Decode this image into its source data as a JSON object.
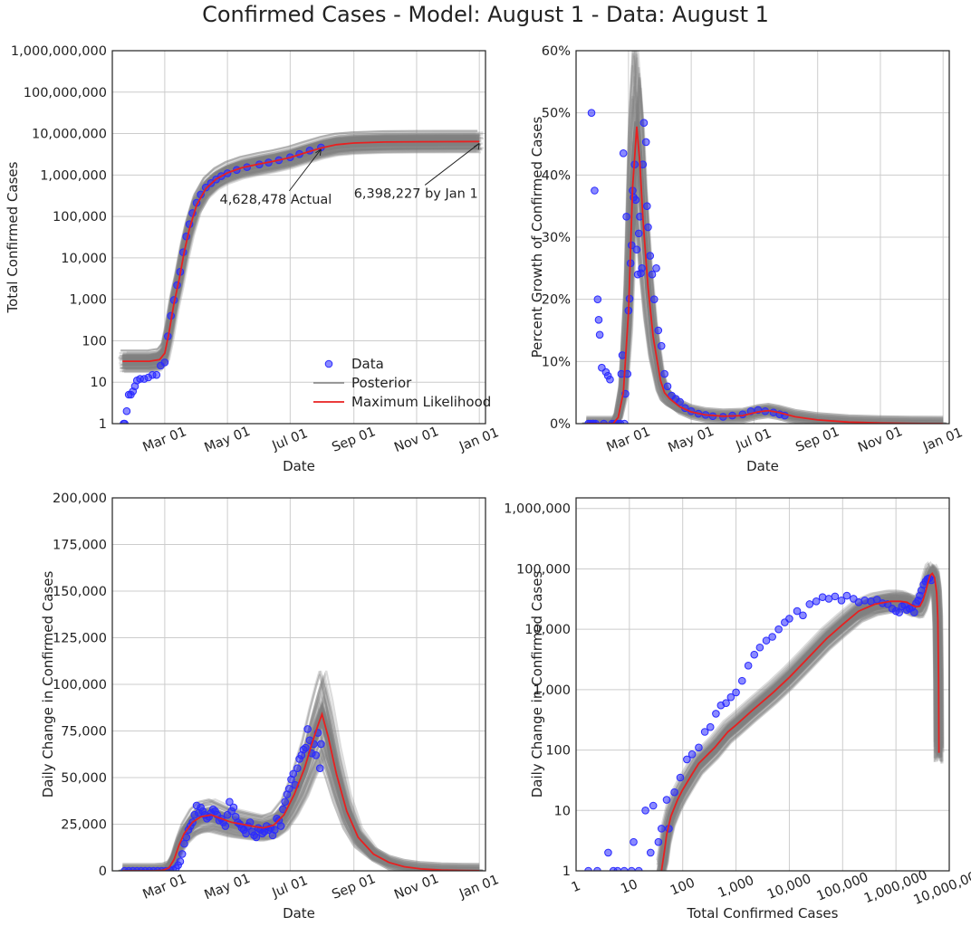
{
  "figure": {
    "title": "Confirmed Cases - Model: August 1 - Data: August 1"
  },
  "colors": {
    "data": "#2a2aff",
    "posterior": "#808080",
    "ml": "#e82020",
    "grid": "#cccccc"
  },
  "chart_data": [
    {
      "id": "total",
      "type": "line",
      "title": "",
      "xlabel": "Date",
      "ylabel": "Total Confirmed Cases",
      "xscale": "date",
      "yscale": "log",
      "xlim": [
        "2020-01-10",
        "2021-01-07"
      ],
      "ylim": [
        1,
        1000000000
      ],
      "xticks": [
        "2020-03-01",
        "2020-05-01",
        "2020-07-01",
        "2020-09-01",
        "2020-11-01",
        "2021-01-01"
      ],
      "xtick_labels": [
        "Mar 01",
        "May 01",
        "Jul 01",
        "Sep 01",
        "Nov 01",
        "Jan 01"
      ],
      "yticks": [
        1,
        10,
        100,
        1000,
        10000,
        100000,
        1000000,
        10000000,
        100000000,
        1000000000
      ],
      "ytick_labels": [
        "1",
        "10",
        "100",
        "1,000",
        "10,000",
        "100,000",
        "1,000,000",
        "10,000,000",
        "100,000,000",
        "1,000,000,000"
      ],
      "grid": true,
      "legend": {
        "position": "bottom-right",
        "entries": [
          "Data",
          "Posterior",
          "Maximum Likelihood"
        ]
      },
      "annotations": [
        {
          "text": "4,628,478 Actual",
          "x": "2020-07-31",
          "y": 4628478
        },
        {
          "text": "6,398,227 by Jan 1",
          "x": "2021-01-01",
          "y": 6398227
        }
      ],
      "data_points": {
        "x": [
          "2020-01-21",
          "2020-01-22",
          "2020-01-24",
          "2020-01-26",
          "2020-01-28",
          "2020-01-30",
          "2020-02-01",
          "2020-02-03",
          "2020-02-06",
          "2020-02-10",
          "2020-02-14",
          "2020-02-18",
          "2020-02-22",
          "2020-02-26",
          "2020-03-01",
          "2020-03-04",
          "2020-03-07",
          "2020-03-10",
          "2020-03-13",
          "2020-03-16",
          "2020-03-19",
          "2020-03-22",
          "2020-03-25",
          "2020-03-28",
          "2020-04-01",
          "2020-04-05",
          "2020-04-10",
          "2020-04-15",
          "2020-04-20",
          "2020-04-25",
          "2020-05-01",
          "2020-05-10",
          "2020-05-20",
          "2020-06-01",
          "2020-06-10",
          "2020-06-20",
          "2020-07-01",
          "2020-07-10",
          "2020-07-20",
          "2020-07-31"
        ],
        "y": [
          1,
          1,
          2,
          5,
          5,
          6,
          8,
          11,
          12,
          12,
          13,
          15,
          15,
          25,
          30,
          128,
          400,
          960,
          2200,
          4600,
          13700,
          33000,
          65000,
          120000,
          213000,
          337000,
          500000,
          636000,
          784000,
          940000,
          1100000,
          1330000,
          1550000,
          1800000,
          2000000,
          2280000,
          2690000,
          3200000,
          3900000,
          4628478
        ]
      },
      "ml_curve": {
        "x": [
          "2020-01-20",
          "2020-02-01",
          "2020-02-15",
          "2020-02-25",
          "2020-03-01",
          "2020-03-05",
          "2020-03-10",
          "2020-03-15",
          "2020-03-20",
          "2020-03-25",
          "2020-04-01",
          "2020-04-10",
          "2020-04-20",
          "2020-05-01",
          "2020-05-15",
          "2020-06-01",
          "2020-06-15",
          "2020-07-01",
          "2020-07-15",
          "2020-08-01",
          "2020-08-15",
          "2020-09-01",
          "2020-10-01",
          "2020-11-01",
          "2020-12-01",
          "2021-01-01"
        ],
        "y": [
          32,
          32,
          32,
          35,
          50,
          150,
          800,
          3000,
          14000,
          50000,
          190000,
          470000,
          800000,
          1130000,
          1500000,
          1850000,
          2150000,
          2650000,
          3400000,
          4550000,
          5400000,
          5900000,
          6250000,
          6350000,
          6390000,
          6398227
        ]
      }
    },
    {
      "id": "growth",
      "type": "line",
      "title": "",
      "xlabel": "Date",
      "ylabel": "Percent Growth of Confirmed Cases",
      "xscale": "date",
      "yscale": "linear",
      "xlim": [
        "2020-01-10",
        "2021-01-07"
      ],
      "ylim": [
        0,
        60
      ],
      "xticks": [
        "2020-03-01",
        "2020-05-01",
        "2020-07-01",
        "2020-09-01",
        "2020-11-01",
        "2021-01-01"
      ],
      "xtick_labels": [
        "Mar 01",
        "May 01",
        "Jul 01",
        "Sep 01",
        "Nov 01",
        "Jan 01"
      ],
      "yticks": [
        0,
        10,
        20,
        30,
        40,
        50,
        60
      ],
      "ytick_labels": [
        "0%",
        "10%",
        "20%",
        "30%",
        "40%",
        "50%",
        "60%"
      ],
      "grid": true,
      "data_points": {
        "x": [
          "2020-01-22",
          "2020-01-24",
          "2020-01-25",
          "2020-01-26",
          "2020-01-27",
          "2020-01-28",
          "2020-01-29",
          "2020-01-31",
          "2020-02-01",
          "2020-02-02",
          "2020-02-04",
          "2020-02-06",
          "2020-02-08",
          "2020-02-10",
          "2020-02-12",
          "2020-02-14",
          "2020-02-16",
          "2020-02-18",
          "2020-02-20",
          "2020-02-22",
          "2020-02-23",
          "2020-02-24",
          "2020-02-25",
          "2020-02-26",
          "2020-02-27",
          "2020-02-28",
          "2020-02-29",
          "2020-03-01",
          "2020-03-02",
          "2020-03-03",
          "2020-03-04",
          "2020-03-05",
          "2020-03-06",
          "2020-03-07",
          "2020-03-08",
          "2020-03-09",
          "2020-03-10",
          "2020-03-11",
          "2020-03-12",
          "2020-03-13",
          "2020-03-14",
          "2020-03-15",
          "2020-03-16",
          "2020-03-18",
          "2020-03-19",
          "2020-03-20",
          "2020-03-22",
          "2020-03-24",
          "2020-03-26",
          "2020-03-28",
          "2020-03-30",
          "2020-04-02",
          "2020-04-05",
          "2020-04-08",
          "2020-04-12",
          "2020-04-16",
          "2020-04-20",
          "2020-04-25",
          "2020-05-01",
          "2020-05-08",
          "2020-05-15",
          "2020-05-22",
          "2020-06-01",
          "2020-06-10",
          "2020-06-20",
          "2020-06-28",
          "2020-07-05",
          "2020-07-12",
          "2020-07-20",
          "2020-07-26",
          "2020-07-31"
        ],
        "y": [
          0,
          0,
          50,
          0,
          0,
          37.5,
          0,
          20,
          16.7,
          14.3,
          9,
          0,
          8.3,
          7.7,
          7.1,
          0,
          0,
          0,
          0,
          0,
          8,
          11,
          43.5,
          0,
          4.8,
          33.3,
          8,
          18.2,
          20.1,
          25.8,
          28.7,
          37.5,
          36.4,
          41.7,
          36,
          28,
          24,
          30.6,
          33.3,
          24.2,
          25,
          41.7,
          48.4,
          45.3,
          35,
          31.6,
          27,
          24,
          20,
          25,
          15,
          12.5,
          8,
          6,
          4.5,
          4,
          3.5,
          2.5,
          2,
          1.6,
          1.4,
          1.2,
          1.1,
          1.3,
          1.5,
          2,
          2.2,
          2,
          1.8,
          1.5,
          1.3
        ]
      },
      "ml_curve": {
        "x": [
          "2020-01-20",
          "2020-02-15",
          "2020-02-20",
          "2020-02-25",
          "2020-03-01",
          "2020-03-05",
          "2020-03-09",
          "2020-03-12",
          "2020-03-15",
          "2020-03-20",
          "2020-03-25",
          "2020-04-01",
          "2020-04-05",
          "2020-04-10",
          "2020-04-20",
          "2020-05-01",
          "2020-05-15",
          "2020-06-01",
          "2020-06-20",
          "2020-07-05",
          "2020-07-15",
          "2020-07-25",
          "2020-08-10",
          "2020-09-01",
          "2020-10-01",
          "2020-11-01",
          "2020-12-01",
          "2021-01-01"
        ],
        "y": [
          0,
          0,
          1,
          5,
          18,
          38,
          47.8,
          42,
          33,
          22,
          14,
          7,
          5,
          4,
          2.7,
          1.9,
          1.4,
          1.2,
          1.3,
          1.9,
          2.1,
          1.8,
          1.1,
          0.6,
          0.25,
          0.1,
          0.03,
          0
        ]
      }
    },
    {
      "id": "daily",
      "type": "line",
      "title": "",
      "xlabel": "Date",
      "ylabel": "Daily Change in Confirmed Cases",
      "xscale": "date",
      "yscale": "linear",
      "xlim": [
        "2020-01-10",
        "2021-01-07"
      ],
      "ylim": [
        0,
        200000
      ],
      "xticks": [
        "2020-03-01",
        "2020-05-01",
        "2020-07-01",
        "2020-09-01",
        "2020-11-01",
        "2021-01-01"
      ],
      "xtick_labels": [
        "Mar 01",
        "May 01",
        "Jul 01",
        "Sep 01",
        "Nov 01",
        "Jan 01"
      ],
      "yticks": [
        0,
        25000,
        50000,
        75000,
        100000,
        125000,
        150000,
        175000,
        200000
      ],
      "ytick_labels": [
        "0",
        "25,000",
        "50,000",
        "75,000",
        "100,000",
        "125,000",
        "150,000",
        "175,000",
        "200,000"
      ],
      "grid": true,
      "data_points": {
        "x": [
          "2020-01-22",
          "2020-01-26",
          "2020-01-30",
          "2020-02-03",
          "2020-02-07",
          "2020-02-11",
          "2020-02-15",
          "2020-02-19",
          "2020-02-23",
          "2020-02-27",
          "2020-03-02",
          "2020-03-06",
          "2020-03-09",
          "2020-03-12",
          "2020-03-14",
          "2020-03-16",
          "2020-03-18",
          "2020-03-20",
          "2020-03-22",
          "2020-03-24",
          "2020-03-26",
          "2020-03-28",
          "2020-03-30",
          "2020-04-01",
          "2020-04-03",
          "2020-04-05",
          "2020-04-07",
          "2020-04-09",
          "2020-04-11",
          "2020-04-13",
          "2020-04-15",
          "2020-04-17",
          "2020-04-19",
          "2020-04-21",
          "2020-04-23",
          "2020-04-25",
          "2020-04-27",
          "2020-04-29",
          "2020-05-01",
          "2020-05-03",
          "2020-05-05",
          "2020-05-07",
          "2020-05-09",
          "2020-05-11",
          "2020-05-13",
          "2020-05-15",
          "2020-05-17",
          "2020-05-19",
          "2020-05-21",
          "2020-05-23",
          "2020-05-25",
          "2020-05-27",
          "2020-05-29",
          "2020-05-31",
          "2020-06-02",
          "2020-06-04",
          "2020-06-06",
          "2020-06-08",
          "2020-06-10",
          "2020-06-12",
          "2020-06-14",
          "2020-06-16",
          "2020-06-18",
          "2020-06-20",
          "2020-06-22",
          "2020-06-24",
          "2020-06-26",
          "2020-06-28",
          "2020-06-30",
          "2020-07-02",
          "2020-07-04",
          "2020-07-06",
          "2020-07-08",
          "2020-07-10",
          "2020-07-12",
          "2020-07-14",
          "2020-07-16",
          "2020-07-18",
          "2020-07-20",
          "2020-07-22",
          "2020-07-24",
          "2020-07-26",
          "2020-07-28",
          "2020-07-30",
          "2020-07-31"
        ],
        "y": [
          0,
          0,
          0,
          0,
          0,
          0,
          0,
          0,
          0,
          0,
          0,
          200,
          600,
          1500,
          3000,
          5000,
          9000,
          14500,
          18000,
          22000,
          24000,
          26000,
          30000,
          35000,
          31000,
          34000,
          32000,
          30000,
          28000,
          29000,
          31000,
          33000,
          32000,
          30000,
          27000,
          28000,
          26000,
          24000,
          30000,
          37000,
          32000,
          34000,
          29000,
          26000,
          25000,
          23000,
          22000,
          20000,
          24000,
          26000,
          21000,
          19000,
          18000,
          23000,
          22000,
          20000,
          21000,
          24000,
          22000,
          23000,
          19000,
          22000,
          28000,
          27000,
          24000,
          33000,
          37000,
          41000,
          44000,
          49000,
          52000,
          46000,
          55000,
          60000,
          62000,
          65000,
          66000,
          76000,
          70000,
          63000,
          68000,
          62000,
          74000,
          55000,
          68000
        ]
      },
      "ml_curve": {
        "x": [
          "2020-01-20",
          "2020-02-20",
          "2020-02-28",
          "2020-03-05",
          "2020-03-10",
          "2020-03-15",
          "2020-03-20",
          "2020-03-28",
          "2020-04-05",
          "2020-04-15",
          "2020-04-25",
          "2020-05-05",
          "2020-05-15",
          "2020-05-25",
          "2020-06-05",
          "2020-06-15",
          "2020-06-25",
          "2020-07-05",
          "2020-07-15",
          "2020-07-22",
          "2020-07-28",
          "2020-08-01",
          "2020-08-07",
          "2020-08-15",
          "2020-08-25",
          "2020-09-05",
          "2020-09-20",
          "2020-10-05",
          "2020-10-20",
          "2020-11-05",
          "2020-11-25",
          "2020-12-15",
          "2021-01-01"
        ],
        "y": [
          0,
          0,
          300,
          1500,
          6000,
          14000,
          20000,
          26000,
          29000,
          30000,
          28000,
          26000,
          25000,
          24000,
          23000,
          24500,
          30000,
          41000,
          55000,
          68000,
          78000,
          84000,
          72000,
          52000,
          32000,
          18000,
          9000,
          4500,
          2200,
          1000,
          400,
          150,
          50
        ]
      }
    },
    {
      "id": "phase",
      "type": "line",
      "title": "",
      "xlabel": "Total Confirmed Cases",
      "ylabel": "Daily Change in Confirmed Cases",
      "xscale": "log",
      "yscale": "log",
      "xlim": [
        1,
        10000000
      ],
      "ylim": [
        1,
        1500000
      ],
      "xticks": [
        1,
        10,
        100,
        1000,
        10000,
        100000,
        1000000,
        10000000
      ],
      "xtick_labels": [
        "1",
        "10",
        "100",
        "1,000",
        "10,000",
        "100,000",
        "1,000,000",
        "10,000,000"
      ],
      "yticks": [
        1,
        10,
        100,
        1000,
        10000,
        100000,
        1000000
      ],
      "ytick_labels": [
        "1",
        "10",
        "100",
        "1,000",
        "10,000",
        "100,000",
        "1,000,000"
      ],
      "grid": true,
      "data_points": {
        "x": [
          1.7,
          2.5,
          5,
          4,
          6,
          8,
          11,
          12,
          15,
          20,
          25,
          28,
          35,
          40,
          50,
          55,
          70,
          90,
          120,
          150,
          200,
          260,
          330,
          420,
          520,
          650,
          800,
          1000,
          1300,
          1700,
          2200,
          2800,
          3700,
          4800,
          6300,
          8200,
          10000,
          14000,
          18000,
          24000,
          32000,
          42000,
          55000,
          72000,
          95000,
          120000,
          160000,
          200000,
          260000,
          340000,
          440000,
          560000,
          700000,
          850000,
          1000000,
          1150000,
          1300000,
          1450000,
          1600000,
          1800000,
          2000000,
          2200000,
          2400000,
          2600000,
          2800000,
          3000000,
          3300000,
          3600000,
          3900000,
          4200000,
          4628478
        ],
        "y": [
          1,
          1,
          1,
          2,
          1,
          1,
          1,
          3,
          1,
          10,
          2,
          12,
          3,
          5,
          15,
          5,
          20,
          35,
          70,
          85,
          110,
          200,
          240,
          400,
          550,
          600,
          750,
          900,
          1400,
          2500,
          3800,
          5000,
          6500,
          7500,
          10000,
          13000,
          15000,
          20000,
          17000,
          26000,
          29000,
          34000,
          32000,
          35000,
          30000,
          36000,
          32000,
          28000,
          30000,
          29000,
          31000,
          27000,
          26000,
          22000,
          20000,
          19000,
          24000,
          25000,
          21000,
          22000,
          23000,
          19000,
          27000,
          30000,
          36000,
          44000,
          55000,
          62000,
          68000,
          70000,
          65000
        ]
      },
      "ml_curve": {
        "x": [
          40,
          45,
          50,
          60,
          80,
          100,
          150,
          200,
          400,
          700,
          1000,
          2000,
          5000,
          10000,
          20000,
          50000,
          100000,
          200000,
          400000,
          800000,
          1200000,
          1600000,
          2000000,
          2400000,
          2800000,
          3200000,
          3600000,
          4000000,
          4400000,
          4800000,
          5300000,
          5800000,
          6100000,
          6300000,
          6398227
        ],
        "y": [
          1,
          2,
          4,
          8,
          15,
          22,
          40,
          60,
          110,
          200,
          260,
          450,
          900,
          1600,
          3000,
          7000,
          12000,
          20000,
          26000,
          29000,
          29000,
          28000,
          25000,
          23500,
          24000,
          30000,
          42000,
          60000,
          78000,
          84000,
          72000,
          40000,
          15000,
          1500,
          90
        ]
      }
    }
  ]
}
